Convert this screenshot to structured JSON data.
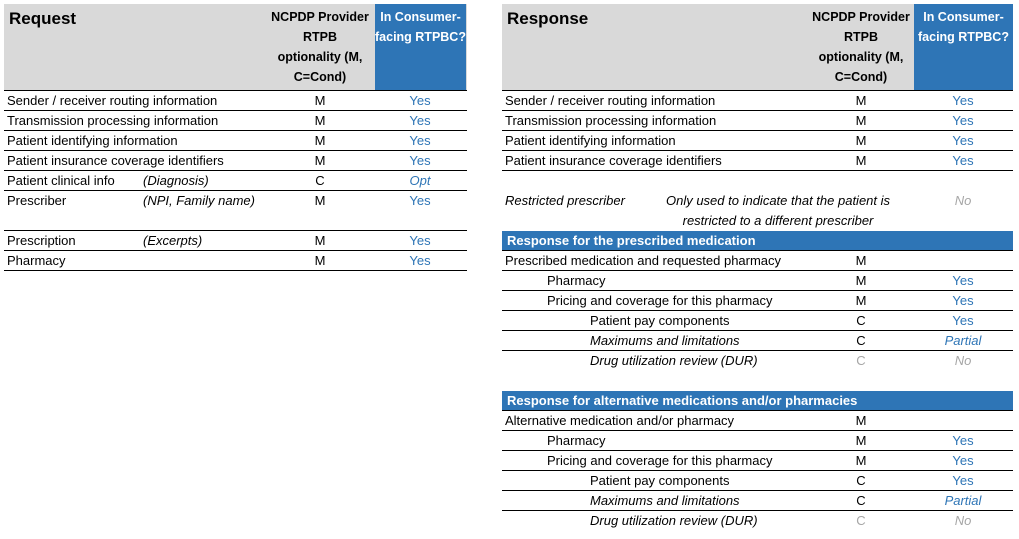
{
  "request": {
    "title": "Request",
    "ncpdp_header": "NCPDP Provider RTPB optionality (M, C=Cond)",
    "consumer_header": "In Consumer-facing RTPBC?",
    "rows": [
      {
        "label": "Sender / receiver routing information",
        "note": "",
        "opt": "M",
        "inc": "Yes"
      },
      {
        "label": "Transmission processing information",
        "note": "",
        "opt": "M",
        "inc": "Yes"
      },
      {
        "label": "Patient identifying information",
        "note": "",
        "opt": "M",
        "inc": "Yes"
      },
      {
        "label": "Patient insurance coverage identifiers",
        "note": "",
        "opt": "M",
        "inc": "Yes"
      },
      {
        "label": "Patient clinical info",
        "note": "(Diagnosis)",
        "opt": "C",
        "inc": "Opt"
      },
      {
        "label": "Prescriber",
        "note": "(NPI, Family name)",
        "opt": "M",
        "inc": "Yes"
      },
      {
        "label": "Prescription",
        "note": "(Excerpts)",
        "opt": "M",
        "inc": "Yes"
      },
      {
        "label": "Pharmacy",
        "note": "",
        "opt": "M",
        "inc": "Yes"
      }
    ]
  },
  "response": {
    "title": "Response",
    "ncpdp_header": "NCPDP Provider RTPB optionality (M, C=Cond)",
    "consumer_header": "In Consumer-facing RTPBC?",
    "rows": [
      {
        "label": "Sender / receiver routing information",
        "opt": "M",
        "inc": "Yes"
      },
      {
        "label": "Transmission processing information",
        "opt": "M",
        "inc": "Yes"
      },
      {
        "label": "Patient identifying information",
        "opt": "M",
        "inc": "Yes"
      },
      {
        "label": "Patient insurance coverage identifiers",
        "opt": "M",
        "inc": "Yes"
      }
    ],
    "restricted": {
      "label": "Restricted prescriber",
      "note": "Only used to indicate that the patient is restricted to a different prescriber",
      "inc": "No"
    },
    "prescribed_section": {
      "title": "Response for the prescribed medication",
      "rows": [
        {
          "label": "Prescribed medication and requested pharmacy",
          "opt": "M",
          "inc": ""
        },
        {
          "label": "Pharmacy",
          "opt": "M",
          "inc": "Yes"
        },
        {
          "label": "Pricing and coverage for this pharmacy",
          "opt": "M",
          "inc": "Yes"
        },
        {
          "label": "Patient pay components",
          "opt": "C",
          "inc": "Yes"
        },
        {
          "label": "Maximums and limitations",
          "opt": "C",
          "inc": "Partial"
        },
        {
          "label": "Drug utilization review (DUR)",
          "opt": "C",
          "inc": "No"
        }
      ]
    },
    "alternative_section": {
      "title": "Response for alternative medications and/or pharmacies",
      "rows": [
        {
          "label": "Alternative medication and/or pharmacy",
          "opt": "M",
          "inc": ""
        },
        {
          "label": "Pharmacy",
          "opt": "M",
          "inc": "Yes"
        },
        {
          "label": "Pricing and coverage for this pharmacy",
          "opt": "M",
          "inc": "Yes"
        },
        {
          "label": "Patient pay components",
          "opt": "C",
          "inc": "Yes"
        },
        {
          "label": "Maximums and limitations",
          "opt": "C",
          "inc": "Partial"
        },
        {
          "label": "Drug utilization review (DUR)",
          "opt": "C",
          "inc": "No"
        }
      ]
    }
  }
}
